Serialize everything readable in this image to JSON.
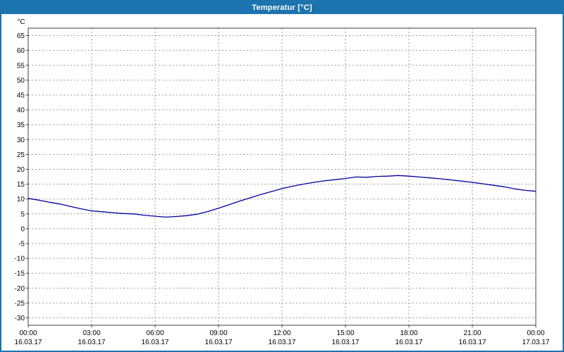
{
  "window": {
    "title": "Temperatur [°C]"
  },
  "colors": {
    "titlebar": "#1d73ae",
    "border": "#1d73ae",
    "plot_bg": "#ffffff",
    "grid": "#9a9a9a",
    "axis": "#404040",
    "text": "#000000",
    "title_text": "#ffffff",
    "line": "#000099"
  },
  "chart_data": {
    "type": "line",
    "title": "Temperatur [°C]",
    "y_unit": "°C",
    "ylim": [
      -32.5,
      67.5
    ],
    "y_ticks": [
      65,
      60,
      55,
      50,
      45,
      40,
      35,
      30,
      25,
      20,
      15,
      10,
      5,
      0,
      -5,
      -10,
      -15,
      -20,
      -25,
      -30
    ],
    "x_hours": [
      0,
      3,
      6,
      9,
      12,
      15,
      18,
      21,
      24
    ],
    "x_tick_labels": [
      "00:00",
      "03:00",
      "06:00",
      "09:00",
      "12:00",
      "15:00",
      "18:00",
      "21:00",
      "00:00"
    ],
    "x_date_labels": [
      "16.03.17",
      "16.03.17",
      "16.03.17",
      "16.03.17",
      "16.03.17",
      "16.03.17",
      "16.03.17",
      "16.03.17",
      "17.03.17"
    ],
    "grid": "dashed",
    "legend": "none",
    "series": [
      {
        "name": "Temperatur",
        "color": "#000099",
        "points": [
          [
            0,
            10.2
          ],
          [
            0.5,
            9.6
          ],
          [
            1,
            8.9
          ],
          [
            1.5,
            8.3
          ],
          [
            2,
            7.5
          ],
          [
            2.5,
            6.7
          ],
          [
            3,
            6.0
          ],
          [
            3.5,
            5.7
          ],
          [
            4,
            5.4
          ],
          [
            4.5,
            5.1
          ],
          [
            5,
            5.0
          ],
          [
            5.5,
            4.5
          ],
          [
            6,
            4.2
          ],
          [
            6.5,
            3.9
          ],
          [
            7,
            4.1
          ],
          [
            7.5,
            4.4
          ],
          [
            8,
            4.9
          ],
          [
            8.5,
            5.8
          ],
          [
            9,
            6.9
          ],
          [
            9.5,
            8.1
          ],
          [
            10,
            9.3
          ],
          [
            10.5,
            10.4
          ],
          [
            11,
            11.5
          ],
          [
            11.5,
            12.5
          ],
          [
            12,
            13.5
          ],
          [
            12.5,
            14.3
          ],
          [
            13,
            15.0
          ],
          [
            13.5,
            15.6
          ],
          [
            14,
            16.1
          ],
          [
            14.5,
            16.5
          ],
          [
            15,
            16.9
          ],
          [
            15.5,
            17.4
          ],
          [
            16,
            17.3
          ],
          [
            16.5,
            17.6
          ],
          [
            17,
            17.7
          ],
          [
            17.5,
            17.9
          ],
          [
            18,
            17.7
          ],
          [
            18.5,
            17.4
          ],
          [
            19,
            17.1
          ],
          [
            19.5,
            16.8
          ],
          [
            20,
            16.4
          ],
          [
            20.5,
            16.0
          ],
          [
            21,
            15.6
          ],
          [
            21.5,
            15.1
          ],
          [
            22,
            14.6
          ],
          [
            22.5,
            14.1
          ],
          [
            23,
            13.4
          ],
          [
            23.5,
            12.9
          ],
          [
            24,
            12.6
          ]
        ]
      }
    ]
  }
}
